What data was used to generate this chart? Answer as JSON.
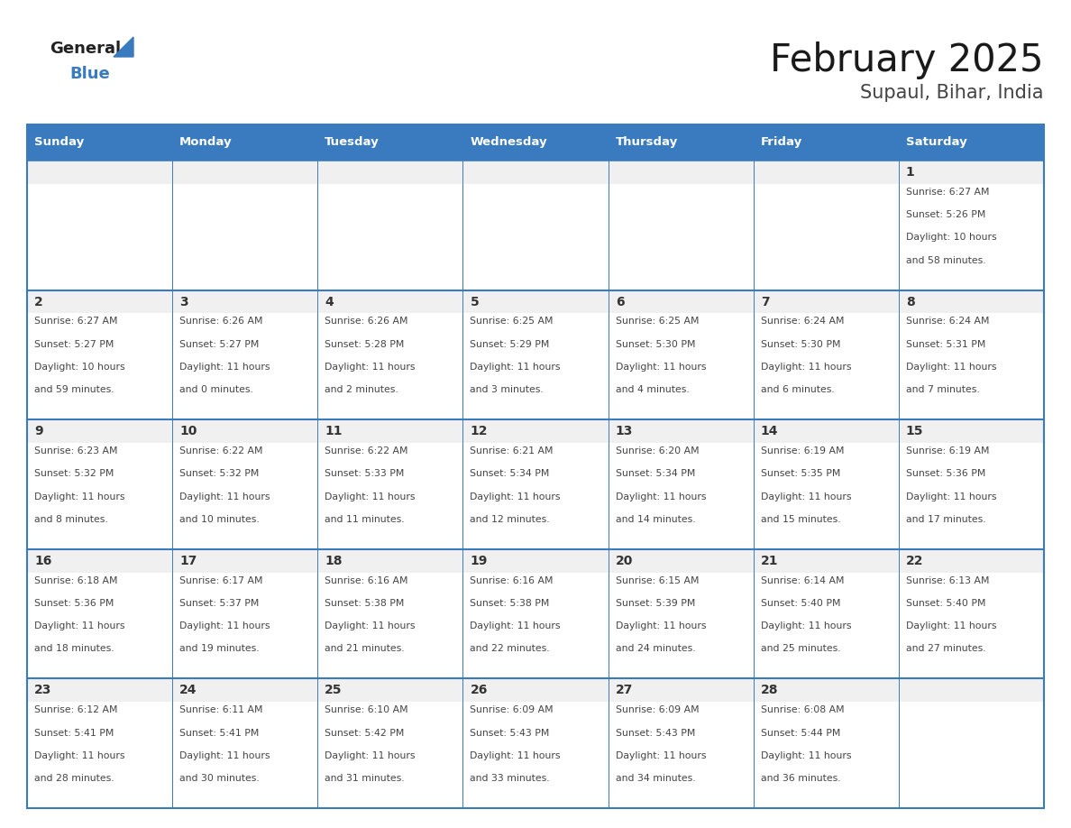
{
  "title": "February 2025",
  "subtitle": "Supaul, Bihar, India",
  "header_bg": "#3A7BBF",
  "header_text_color": "#FFFFFF",
  "day_names": [
    "Sunday",
    "Monday",
    "Tuesday",
    "Wednesday",
    "Thursday",
    "Friday",
    "Saturday"
  ],
  "cell_bg_white": "#FFFFFF",
  "cell_bg_gray": "#F0F0F0",
  "border_color": "#3A7BBF",
  "text_color": "#444444",
  "day_num_color": "#333333",
  "logo_general_color": "#222222",
  "logo_blue_color": "#3A7BBF",
  "calendar": [
    [
      null,
      null,
      null,
      null,
      null,
      null,
      {
        "day": 1,
        "sunrise": "6:27 AM",
        "sunset": "5:26 PM",
        "daylight": "10 hours",
        "daylight2": "and 58 minutes."
      }
    ],
    [
      {
        "day": 2,
        "sunrise": "6:27 AM",
        "sunset": "5:27 PM",
        "daylight": "10 hours",
        "daylight2": "and 59 minutes."
      },
      {
        "day": 3,
        "sunrise": "6:26 AM",
        "sunset": "5:27 PM",
        "daylight": "11 hours",
        "daylight2": "and 0 minutes."
      },
      {
        "day": 4,
        "sunrise": "6:26 AM",
        "sunset": "5:28 PM",
        "daylight": "11 hours",
        "daylight2": "and 2 minutes."
      },
      {
        "day": 5,
        "sunrise": "6:25 AM",
        "sunset": "5:29 PM",
        "daylight": "11 hours",
        "daylight2": "and 3 minutes."
      },
      {
        "day": 6,
        "sunrise": "6:25 AM",
        "sunset": "5:30 PM",
        "daylight": "11 hours",
        "daylight2": "and 4 minutes."
      },
      {
        "day": 7,
        "sunrise": "6:24 AM",
        "sunset": "5:30 PM",
        "daylight": "11 hours",
        "daylight2": "and 6 minutes."
      },
      {
        "day": 8,
        "sunrise": "6:24 AM",
        "sunset": "5:31 PM",
        "daylight": "11 hours",
        "daylight2": "and 7 minutes."
      }
    ],
    [
      {
        "day": 9,
        "sunrise": "6:23 AM",
        "sunset": "5:32 PM",
        "daylight": "11 hours",
        "daylight2": "and 8 minutes."
      },
      {
        "day": 10,
        "sunrise": "6:22 AM",
        "sunset": "5:32 PM",
        "daylight": "11 hours",
        "daylight2": "and 10 minutes."
      },
      {
        "day": 11,
        "sunrise": "6:22 AM",
        "sunset": "5:33 PM",
        "daylight": "11 hours",
        "daylight2": "and 11 minutes."
      },
      {
        "day": 12,
        "sunrise": "6:21 AM",
        "sunset": "5:34 PM",
        "daylight": "11 hours",
        "daylight2": "and 12 minutes."
      },
      {
        "day": 13,
        "sunrise": "6:20 AM",
        "sunset": "5:34 PM",
        "daylight": "11 hours",
        "daylight2": "and 14 minutes."
      },
      {
        "day": 14,
        "sunrise": "6:19 AM",
        "sunset": "5:35 PM",
        "daylight": "11 hours",
        "daylight2": "and 15 minutes."
      },
      {
        "day": 15,
        "sunrise": "6:19 AM",
        "sunset": "5:36 PM",
        "daylight": "11 hours",
        "daylight2": "and 17 minutes."
      }
    ],
    [
      {
        "day": 16,
        "sunrise": "6:18 AM",
        "sunset": "5:36 PM",
        "daylight": "11 hours",
        "daylight2": "and 18 minutes."
      },
      {
        "day": 17,
        "sunrise": "6:17 AM",
        "sunset": "5:37 PM",
        "daylight": "11 hours",
        "daylight2": "and 19 minutes."
      },
      {
        "day": 18,
        "sunrise": "6:16 AM",
        "sunset": "5:38 PM",
        "daylight": "11 hours",
        "daylight2": "and 21 minutes."
      },
      {
        "day": 19,
        "sunrise": "6:16 AM",
        "sunset": "5:38 PM",
        "daylight": "11 hours",
        "daylight2": "and 22 minutes."
      },
      {
        "day": 20,
        "sunrise": "6:15 AM",
        "sunset": "5:39 PM",
        "daylight": "11 hours",
        "daylight2": "and 24 minutes."
      },
      {
        "day": 21,
        "sunrise": "6:14 AM",
        "sunset": "5:40 PM",
        "daylight": "11 hours",
        "daylight2": "and 25 minutes."
      },
      {
        "day": 22,
        "sunrise": "6:13 AM",
        "sunset": "5:40 PM",
        "daylight": "11 hours",
        "daylight2": "and 27 minutes."
      }
    ],
    [
      {
        "day": 23,
        "sunrise": "6:12 AM",
        "sunset": "5:41 PM",
        "daylight": "11 hours",
        "daylight2": "and 28 minutes."
      },
      {
        "day": 24,
        "sunrise": "6:11 AM",
        "sunset": "5:41 PM",
        "daylight": "11 hours",
        "daylight2": "and 30 minutes."
      },
      {
        "day": 25,
        "sunrise": "6:10 AM",
        "sunset": "5:42 PM",
        "daylight": "11 hours",
        "daylight2": "and 31 minutes."
      },
      {
        "day": 26,
        "sunrise": "6:09 AM",
        "sunset": "5:43 PM",
        "daylight": "11 hours",
        "daylight2": "and 33 minutes."
      },
      {
        "day": 27,
        "sunrise": "6:09 AM",
        "sunset": "5:43 PM",
        "daylight": "11 hours",
        "daylight2": "and 34 minutes."
      },
      {
        "day": 28,
        "sunrise": "6:08 AM",
        "sunset": "5:44 PM",
        "daylight": "11 hours",
        "daylight2": "and 36 minutes."
      },
      null
    ]
  ]
}
